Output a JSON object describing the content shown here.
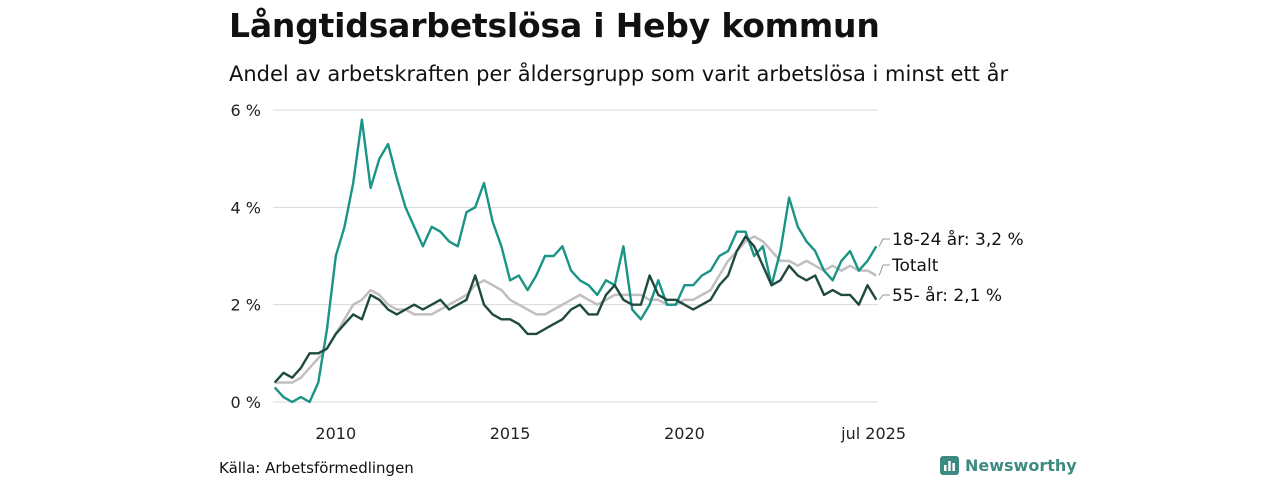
{
  "header": {
    "title": "Långtidsarbetslösa i Heby kommun",
    "subtitle": "Andel av arbetskraften per åldersgrupp som varit arbetslösa i minst ett år"
  },
  "footer": {
    "source": "Källa: Arbetsförmedlingen",
    "brand": "Newsworthy"
  },
  "colors": {
    "youth": "#1a9485",
    "total": "#c2bec3",
    "older": "#1f4a3f",
    "grid": "#d9d9d9",
    "brand": "#3d8a82"
  },
  "icons": {
    "brand": "newsworthy-logo-icon"
  },
  "chart_data": {
    "type": "line",
    "title": "Långtidsarbetslösa i Heby kommun",
    "subtitle": "Andel av arbetskraften per åldersgrupp som varit arbetslösa i minst ett år",
    "ylim": [
      0,
      6
    ],
    "y_ticks": [
      0,
      2,
      4,
      6
    ],
    "y_tick_labels": [
      "0 %",
      "2 %",
      "4 %",
      "6 %"
    ],
    "x_ticks": [
      2010,
      2015,
      2020,
      2025.5
    ],
    "x_tick_labels": [
      "2010",
      "2015",
      "2020",
      "jul 2025"
    ],
    "grid": true,
    "legend": "direct labels at line ends (right)",
    "end_labels": [
      "18-24 år: 3,2 %",
      "Totalt",
      "55- år: 2,1 %"
    ],
    "series": [
      {
        "name": "18-24 år",
        "color": "#1a9485",
        "x": [
          2008.25,
          2008.5,
          2008.75,
          2009.0,
          2009.25,
          2009.5,
          2009.75,
          2010.0,
          2010.25,
          2010.5,
          2010.75,
          2011.0,
          2011.25,
          2011.5,
          2011.75,
          2012.0,
          2012.25,
          2012.5,
          2012.75,
          2013.0,
          2013.25,
          2013.5,
          2013.75,
          2014.0,
          2014.25,
          2014.5,
          2014.75,
          2015.0,
          2015.25,
          2015.5,
          2015.75,
          2016.0,
          2016.25,
          2016.5,
          2016.75,
          2017.0,
          2017.25,
          2017.5,
          2017.75,
          2018.0,
          2018.25,
          2018.5,
          2018.75,
          2019.0,
          2019.25,
          2019.5,
          2019.75,
          2020.0,
          2020.25,
          2020.5,
          2020.75,
          2021.0,
          2021.25,
          2021.5,
          2021.75,
          2022.0,
          2022.25,
          2022.5,
          2022.75,
          2023.0,
          2023.25,
          2023.5,
          2023.75,
          2024.0,
          2024.25,
          2024.5,
          2024.75,
          2025.0,
          2025.25,
          2025.5
        ],
        "values": [
          0.3,
          0.1,
          0.0,
          0.1,
          0.0,
          0.4,
          1.5,
          3.0,
          3.6,
          4.5,
          5.8,
          4.4,
          5.0,
          5.3,
          4.6,
          4.0,
          3.6,
          3.2,
          3.6,
          3.5,
          3.3,
          3.2,
          3.9,
          4.0,
          4.5,
          3.7,
          3.2,
          2.5,
          2.6,
          2.3,
          2.6,
          3.0,
          3.0,
          3.2,
          2.7,
          2.5,
          2.4,
          2.2,
          2.5,
          2.4,
          3.2,
          1.9,
          1.7,
          2.0,
          2.5,
          2.0,
          2.0,
          2.4,
          2.4,
          2.6,
          2.7,
          3.0,
          3.1,
          3.5,
          3.5,
          3.0,
          3.2,
          2.4,
          3.1,
          4.2,
          3.6,
          3.3,
          3.1,
          2.7,
          2.5,
          2.9,
          3.1,
          2.7,
          2.9,
          3.2
        ]
      },
      {
        "name": "Totalt",
        "color": "#c2bec3",
        "x": [
          2008.25,
          2008.5,
          2008.75,
          2009.0,
          2009.25,
          2009.5,
          2009.75,
          2010.0,
          2010.25,
          2010.5,
          2010.75,
          2011.0,
          2011.25,
          2011.5,
          2011.75,
          2012.0,
          2012.25,
          2012.5,
          2012.75,
          2013.0,
          2013.25,
          2013.5,
          2013.75,
          2014.0,
          2014.25,
          2014.5,
          2014.75,
          2015.0,
          2015.25,
          2015.5,
          2015.75,
          2016.0,
          2016.25,
          2016.5,
          2016.75,
          2017.0,
          2017.25,
          2017.5,
          2017.75,
          2018.0,
          2018.25,
          2018.5,
          2018.75,
          2019.0,
          2019.25,
          2019.5,
          2019.75,
          2020.0,
          2020.25,
          2020.5,
          2020.75,
          2021.0,
          2021.25,
          2021.5,
          2021.75,
          2022.0,
          2022.25,
          2022.5,
          2022.75,
          2023.0,
          2023.25,
          2023.5,
          2023.75,
          2024.0,
          2024.25,
          2024.5,
          2024.75,
          2025.0,
          2025.25,
          2025.5
        ],
        "values": [
          0.4,
          0.4,
          0.4,
          0.5,
          0.7,
          0.9,
          1.1,
          1.4,
          1.7,
          2.0,
          2.1,
          2.3,
          2.2,
          2.0,
          1.9,
          1.9,
          1.8,
          1.8,
          1.8,
          1.9,
          2.0,
          2.1,
          2.2,
          2.4,
          2.5,
          2.4,
          2.3,
          2.1,
          2.0,
          1.9,
          1.8,
          1.8,
          1.9,
          2.0,
          2.1,
          2.2,
          2.1,
          2.0,
          2.1,
          2.2,
          2.2,
          2.2,
          2.2,
          2.1,
          2.1,
          2.0,
          2.0,
          2.1,
          2.1,
          2.2,
          2.3,
          2.6,
          2.9,
          3.1,
          3.3,
          3.4,
          3.3,
          3.1,
          2.9,
          2.9,
          2.8,
          2.9,
          2.8,
          2.7,
          2.8,
          2.7,
          2.8,
          2.7,
          2.7,
          2.6
        ]
      },
      {
        "name": "55- år",
        "color": "#1f4a3f",
        "x": [
          2008.25,
          2008.5,
          2008.75,
          2009.0,
          2009.25,
          2009.5,
          2009.75,
          2010.0,
          2010.25,
          2010.5,
          2010.75,
          2011.0,
          2011.25,
          2011.5,
          2011.75,
          2012.0,
          2012.25,
          2012.5,
          2012.75,
          2013.0,
          2013.25,
          2013.5,
          2013.75,
          2014.0,
          2014.25,
          2014.5,
          2014.75,
          2015.0,
          2015.25,
          2015.5,
          2015.75,
          2016.0,
          2016.25,
          2016.5,
          2016.75,
          2017.0,
          2017.25,
          2017.5,
          2017.75,
          2018.0,
          2018.25,
          2018.5,
          2018.75,
          2019.0,
          2019.25,
          2019.5,
          2019.75,
          2020.0,
          2020.25,
          2020.5,
          2020.75,
          2021.0,
          2021.25,
          2021.5,
          2021.75,
          2022.0,
          2022.25,
          2022.5,
          2022.75,
          2023.0,
          2023.25,
          2023.5,
          2023.75,
          2024.0,
          2024.25,
          2024.5,
          2024.75,
          2025.0,
          2025.25,
          2025.5
        ],
        "values": [
          0.4,
          0.6,
          0.5,
          0.7,
          1.0,
          1.0,
          1.1,
          1.4,
          1.6,
          1.8,
          1.7,
          2.2,
          2.1,
          1.9,
          1.8,
          1.9,
          2.0,
          1.9,
          2.0,
          2.1,
          1.9,
          2.0,
          2.1,
          2.6,
          2.0,
          1.8,
          1.7,
          1.7,
          1.6,
          1.4,
          1.4,
          1.5,
          1.6,
          1.7,
          1.9,
          2.0,
          1.8,
          1.8,
          2.2,
          2.4,
          2.1,
          2.0,
          2.0,
          2.6,
          2.2,
          2.1,
          2.1,
          2.0,
          1.9,
          2.0,
          2.1,
          2.4,
          2.6,
          3.1,
          3.4,
          3.2,
          2.8,
          2.4,
          2.5,
          2.8,
          2.6,
          2.5,
          2.6,
          2.2,
          2.3,
          2.2,
          2.2,
          2.0,
          2.4,
          2.1
        ]
      }
    ]
  }
}
